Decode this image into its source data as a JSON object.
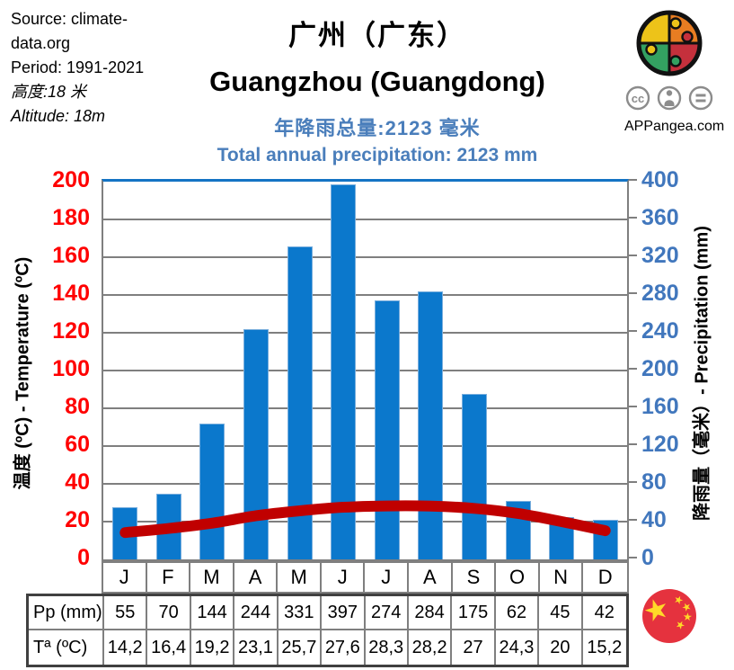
{
  "info": {
    "lines": [
      "Source: climate-",
      "data.org",
      "Period: 1991-2021"
    ],
    "altitude_zh": "高度:18 米",
    "altitude_en": "Altitude: 18m"
  },
  "titles": {
    "title_zh": "广州（广东）",
    "title_en": "Guangzhou (Guangdong)",
    "subtitle_zh": "年降雨总量:2123 毫米",
    "subtitle_en": "Total annual precipitation: 2123 mm"
  },
  "branding": {
    "name": "APPangea.com",
    "license_icons": [
      "cc-icon",
      "attribution-person-icon",
      "equals-icon"
    ],
    "logo": "puzzle-globe-logo"
  },
  "chart_data": {
    "type": "bar+line",
    "categories": [
      "J",
      "F",
      "M",
      "A",
      "M",
      "J",
      "J",
      "A",
      "S",
      "O",
      "N",
      "D"
    ],
    "series": [
      {
        "name": "Pp (mm)",
        "chart": "bar",
        "axis": "right",
        "color": "#0B78CC",
        "values": [
          55,
          70,
          144,
          244,
          331,
          397,
          274,
          284,
          175,
          62,
          45,
          42
        ]
      },
      {
        "name": "Tª (ºC)",
        "chart": "line",
        "axis": "left",
        "color": "#C00000",
        "values": [
          14.2,
          16.4,
          19.2,
          23.1,
          25.7,
          27.6,
          28.3,
          28.2,
          27,
          24.3,
          20,
          15.2
        ]
      }
    ],
    "annual_total_mm": 2123,
    "left_axis": {
      "label": "温度 (ºC) - Temperature  (ºC)",
      "min": 0,
      "max": 200,
      "step": 20,
      "color": "#FF0000"
    },
    "right_axis": {
      "label": "降雨量（毫米）- Precipitation  (mm)",
      "min": 0,
      "max": 400,
      "step": 40,
      "color": "#4177BD"
    },
    "grid": true,
    "gridline_color": "#7F7F7F",
    "legend": "none"
  },
  "table": {
    "months": [
      "J",
      "F",
      "M",
      "A",
      "M",
      "J",
      "J",
      "A",
      "S",
      "O",
      "N",
      "D"
    ],
    "rows": [
      {
        "label": "Pp (mm)",
        "values": [
          "55",
          "70",
          "144",
          "244",
          "331",
          "397",
          "274",
          "284",
          "175",
          "62",
          "45",
          "42"
        ]
      },
      {
        "label": "Tª (ºC)",
        "values": [
          "14,2",
          "16,4",
          "19,2",
          "23,1",
          "25,7",
          "27,6",
          "28,3",
          "28,2",
          "27",
          "24,3",
          "20",
          "15,2"
        ]
      }
    ]
  },
  "flag": {
    "name": "china-flag"
  }
}
